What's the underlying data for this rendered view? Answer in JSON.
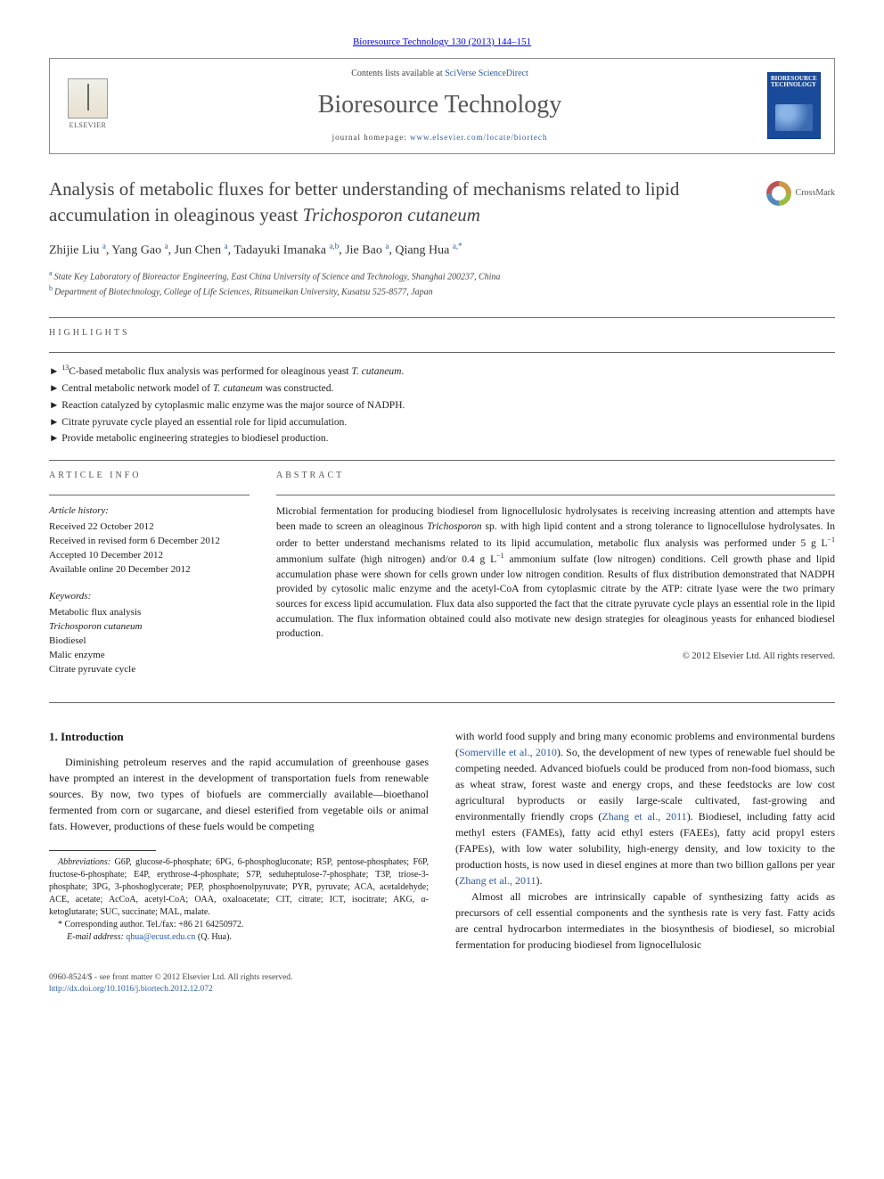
{
  "top_citation": "Bioresource Technology 130 (2013) 144–151",
  "header": {
    "contents_prefix": "Contents lists available at ",
    "contents_link": "SciVerse ScienceDirect",
    "journal": "Bioresource Technology",
    "homepage_prefix": "journal homepage: ",
    "homepage_url": "www.elsevier.com/locate/biortech",
    "publisher": "ELSEVIER",
    "cover_title": "BIORESOURCE TECHNOLOGY"
  },
  "crossmark_label": "CrossMark",
  "title_part1": "Analysis of metabolic fluxes for better understanding of mechanisms related to lipid accumulation in oleaginous yeast ",
  "title_italic": "Trichosporon cutaneum",
  "authors_html": "Zhijie Liu <sup>a</sup>, Yang Gao <sup>a</sup>, Jun Chen <sup>a</sup>, Tadayuki Imanaka <sup>a,b</sup>, Jie Bao <sup>a</sup>, Qiang Hua <sup>a,*</sup>",
  "affiliations": [
    {
      "sup": "a",
      "text": "State Key Laboratory of Bioreactor Engineering, East China University of Science and Technology, Shanghai 200237, China"
    },
    {
      "sup": "b",
      "text": "Department of Biotechnology, College of Life Sciences, Ritsumeikan University, Kusatsu 525-8577, Japan"
    }
  ],
  "labels": {
    "highlights": "highlights",
    "article_info": "article info",
    "abstract": "abstract"
  },
  "highlights": [
    "<sup>13</sup>C-based metabolic flux analysis was performed for oleaginous yeast <em>T. cutaneum</em>.",
    "Central metabolic network model of <em>T. cutaneum</em> was constructed.",
    "Reaction catalyzed by cytoplasmic malic enzyme was the major source of NADPH.",
    "Citrate pyruvate cycle played an essential role for lipid accumulation.",
    "Provide metabolic engineering strategies to biodiesel production."
  ],
  "article_info": {
    "history_heading": "Article history:",
    "history": [
      "Received 22 October 2012",
      "Received in revised form 6 December 2012",
      "Accepted 10 December 2012",
      "Available online 20 December 2012"
    ],
    "keywords_heading": "Keywords:",
    "keywords": [
      "Metabolic flux analysis",
      "Trichosporon cutaneum",
      "Biodiesel",
      "Malic enzyme",
      "Citrate pyruvate cycle"
    ]
  },
  "abstract_html": "Microbial fermentation for producing biodiesel from lignocellulosic hydrolysates is receiving increasing attention and attempts have been made to screen an oleaginous <em>Trichosporon</em> sp. with high lipid content and a strong tolerance to lignocellulose hydrolysates. In order to better understand mechanisms related to its lipid accumulation, metabolic flux analysis was performed under 5 g L<sup>−1</sup> ammonium sulfate (high nitrogen) and/or 0.4 g L<sup>−1</sup> ammonium sulfate (low nitrogen) conditions. Cell growth phase and lipid accumulation phase were shown for cells grown under low nitrogen condition. Results of flux distribution demonstrated that NADPH provided by cytosolic malic enzyme and the acetyl-CoA from cytoplasmic citrate by the ATP: citrate lyase were the two primary sources for excess lipid accumulation. Flux data also supported the fact that the citrate pyruvate cycle plays an essential role in the lipid accumulation. The flux information obtained could also motivate new design strategies for oleaginous yeasts for enhanced biodiesel production.",
  "copyright": "© 2012 Elsevier Ltd. All rights reserved.",
  "intro_heading": "1. Introduction",
  "intro_p1_html": "Diminishing petroleum reserves and the rapid accumulation of greenhouse gases have prompted an interest in the development of transportation fuels from renewable sources. By now, two types of biofuels are commercially available—bioethanol fermented from corn or sugarcane, and diesel esterified from vegetable oils or animal fats. However, productions of these fuels would be competing",
  "intro_p2_html": "with world food supply and bring many economic problems and environmental burdens (<a href='#'>Somerville et al., 2010</a>). So, the development of new types of renewable fuel should be competing needed. Advanced biofuels could be produced from non-food biomass, such as wheat straw, forest waste and energy crops, and these feedstocks are low cost agricultural byproducts or easily large-scale cultivated, fast-growing and environmentally friendly crops (<a href='#'>Zhang et al., 2011</a>). Biodiesel, including fatty acid methyl esters (FAMEs), fatty acid ethyl esters (FAEEs), fatty acid propyl esters (FAPEs), with low water solubility, high-energy density, and low toxicity to the production hosts, is now used in diesel engines at more than two billion gallons per year (<a href='#'>Zhang et al., 2011</a>).",
  "intro_p3_html": "Almost all microbes are intrinsically capable of synthesizing fatty acids as precursors of cell essential components and the synthesis rate is very fast. Fatty acids are central hydrocarbon intermediates in the biosynthesis of biodiesel, so microbial fermentation for producing biodiesel from lignocellulosic",
  "footnotes": {
    "abbr_label": "Abbreviations:",
    "abbr_text": " G6P, glucose-6-phosphate; 6PG, 6-phosphogluconate; R5P, pentose-phosphates; F6P, fructose-6-phosphate; E4P, erythrose-4-phosphate; S7P, seduheptulose-7-phosphate; T3P, triose-3-phosphate; 3PG, 3-phoshoglycerate; PEP, phosphoenolpyruvate; PYR, pyruvate; ACA, acetaldehyde; ACE, acetate; AcCoA, acetyl-CoA; OAA, oxaloacetate; CIT, citrate; ICT, isocitrate; AKG, α-ketoglutarate; SUC, succinate; MAL, malate.",
    "corresponding": "* Corresponding author. Tel./fax: +86 21 64250972.",
    "email_label": "E-mail address: ",
    "email": "qhua@ecust.edu.cn",
    "email_suffix": " (Q. Hua)."
  },
  "bottom": {
    "line1": "0960-8524/$ - see front matter © 2012 Elsevier Ltd. All rights reserved.",
    "doi": "http://dx.doi.org/10.1016/j.biortech.2012.12.072"
  },
  "colors": {
    "link": "#2a5aa5",
    "text": "#1a1a1a",
    "muted": "#555555",
    "rule": "#666666"
  }
}
